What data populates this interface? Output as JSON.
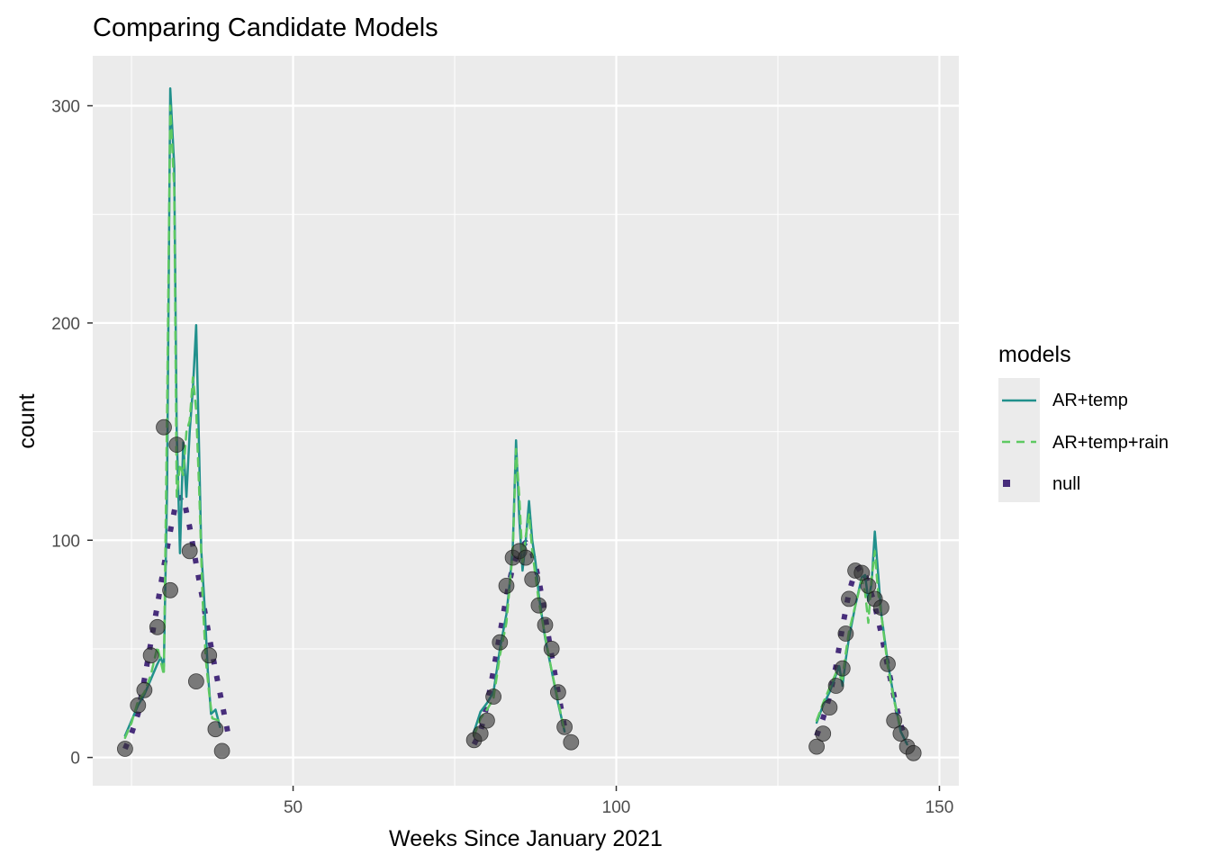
{
  "chart_data": {
    "type": "line",
    "title": "Comparing Candidate Models",
    "xlabel": "Weeks Since January 2021",
    "ylabel": "count",
    "xlim": [
      19,
      153
    ],
    "ylim": [
      -13,
      323
    ],
    "x_ticks": [
      50,
      100,
      150
    ],
    "y_ticks": [
      0,
      100,
      200,
      300
    ],
    "x_minor": [
      25,
      75,
      125
    ],
    "y_minor": [
      50,
      150,
      250
    ],
    "grid": true,
    "background": "#ebebeb",
    "legend": {
      "title": "models",
      "position": "right",
      "entries": [
        {
          "label": "AR+temp",
          "color": "#21908c",
          "style": "solid"
        },
        {
          "label": "AR+temp+rain",
          "color": "#5ec962",
          "style": "dashed"
        },
        {
          "label": "null",
          "color": "#472d7b",
          "style": "dotted"
        }
      ]
    },
    "observed": {
      "color": "#333333",
      "points": [
        [
          24,
          4
        ],
        [
          26,
          24
        ],
        [
          27,
          31
        ],
        [
          28,
          47
        ],
        [
          29,
          60
        ],
        [
          30,
          152
        ],
        [
          31,
          77
        ],
        [
          32,
          144
        ],
        [
          34,
          95
        ],
        [
          35,
          35
        ],
        [
          37,
          47
        ],
        [
          38,
          13
        ],
        [
          39,
          3
        ],
        [
          78,
          8
        ],
        [
          79,
          11
        ],
        [
          80,
          17
        ],
        [
          81,
          28
        ],
        [
          82,
          53
        ],
        [
          83,
          79
        ],
        [
          84,
          92
        ],
        [
          85,
          95
        ],
        [
          86,
          92
        ],
        [
          87,
          82
        ],
        [
          88,
          70
        ],
        [
          89,
          61
        ],
        [
          90,
          50
        ],
        [
          91,
          30
        ],
        [
          92,
          14
        ],
        [
          93,
          7
        ],
        [
          131,
          5
        ],
        [
          132,
          11
        ],
        [
          133,
          23
        ],
        [
          134,
          33
        ],
        [
          135,
          41
        ],
        [
          135.5,
          57
        ],
        [
          136,
          73
        ],
        [
          137,
          86
        ],
        [
          138,
          85
        ],
        [
          139,
          79
        ],
        [
          140,
          73
        ],
        [
          141,
          69
        ],
        [
          142,
          43
        ],
        [
          143,
          17
        ],
        [
          144,
          11
        ],
        [
          145,
          5
        ],
        [
          146,
          2
        ]
      ]
    },
    "series": [
      {
        "name": "AR+temp",
        "segments": [
          [
            [
              24,
              10
            ],
            [
              25,
              17
            ],
            [
              26,
              24
            ],
            [
              27,
              29
            ],
            [
              28,
              36
            ],
            [
              29,
              43
            ],
            [
              29.5,
              46
            ],
            [
              30,
              42
            ],
            [
              30.5,
              124
            ],
            [
              31,
              308
            ],
            [
              31.6,
              272
            ],
            [
              32,
              150
            ],
            [
              32.5,
              94
            ],
            [
              33,
              145
            ],
            [
              33.5,
              120
            ],
            [
              34,
              150
            ],
            [
              34.5,
              170
            ],
            [
              35,
              199
            ],
            [
              35.4,
              150
            ],
            [
              35.8,
              95
            ],
            [
              36.3,
              70
            ],
            [
              36.8,
              40
            ],
            [
              37.3,
              20
            ],
            [
              38,
              22
            ],
            [
              38.7,
              14
            ]
          ],
          [
            [
              78,
              12
            ],
            [
              79,
              21
            ],
            [
              80,
              25
            ],
            [
              81,
              30
            ],
            [
              82,
              50
            ],
            [
              83,
              66
            ],
            [
              83.5,
              80
            ],
            [
              84,
              97
            ],
            [
              84.5,
              146
            ],
            [
              85,
              110
            ],
            [
              85.5,
              86
            ],
            [
              86,
              100
            ],
            [
              86.5,
              118
            ],
            [
              87,
              100
            ],
            [
              87.5,
              90
            ],
            [
              88,
              75
            ],
            [
              89,
              55
            ],
            [
              90,
              40
            ],
            [
              91,
              25
            ],
            [
              92,
              12
            ]
          ],
          [
            [
              131,
              16
            ],
            [
              132,
              24
            ],
            [
              133,
              30
            ],
            [
              134,
              38
            ],
            [
              134.5,
              42
            ],
            [
              135,
              33
            ],
            [
              135.5,
              45
            ],
            [
              136,
              55
            ],
            [
              137,
              70
            ],
            [
              138,
              83
            ],
            [
              138.5,
              84
            ],
            [
              139,
              72
            ],
            [
              139.5,
              80
            ],
            [
              140,
              104
            ],
            [
              140.5,
              85
            ],
            [
              141,
              66
            ],
            [
              142,
              44
            ],
            [
              143,
              27
            ],
            [
              144,
              12
            ],
            [
              145,
              6
            ]
          ]
        ]
      },
      {
        "name": "AR+temp+rain",
        "segments": [
          [
            [
              24,
              9
            ],
            [
              25,
              16
            ],
            [
              26,
              26
            ],
            [
              27,
              30
            ],
            [
              28,
              38
            ],
            [
              29,
              51
            ],
            [
              30,
              38
            ],
            [
              30.5,
              160
            ],
            [
              31,
              300
            ],
            [
              31.6,
              262
            ],
            [
              32,
              120
            ],
            [
              32.5,
              135
            ],
            [
              33,
              130
            ],
            [
              33.5,
              150
            ],
            [
              34,
              155
            ],
            [
              34.5,
              175
            ],
            [
              35,
              160
            ],
            [
              35.5,
              120
            ],
            [
              36,
              73
            ],
            [
              36.5,
              45
            ],
            [
              37,
              30
            ],
            [
              37.5,
              18
            ],
            [
              38.5,
              17
            ]
          ],
          [
            [
              78,
              10
            ],
            [
              79,
              18
            ],
            [
              80,
              22
            ],
            [
              81,
              27
            ],
            [
              82,
              47
            ],
            [
              83,
              62
            ],
            [
              84,
              95
            ],
            [
              84.5,
              142
            ],
            [
              85,
              120
            ],
            [
              85.5,
              90
            ],
            [
              86,
              102
            ],
            [
              86.5,
              112
            ],
            [
              87,
              95
            ],
            [
              88,
              72
            ],
            [
              89,
              56
            ],
            [
              90,
              40
            ],
            [
              91,
              26
            ],
            [
              92,
              12
            ]
          ],
          [
            [
              131,
              17
            ],
            [
              132,
              25
            ],
            [
              133,
              32
            ],
            [
              134,
              39
            ],
            [
              135,
              36
            ],
            [
              135.5,
              48
            ],
            [
              136,
              58
            ],
            [
              137,
              70
            ],
            [
              138,
              82
            ],
            [
              138.5,
              76
            ],
            [
              139,
              62
            ],
            [
              139.5,
              82
            ],
            [
              140,
              95
            ],
            [
              140.5,
              76
            ],
            [
              141,
              66
            ],
            [
              142,
              42
            ],
            [
              143,
              26
            ],
            [
              144,
              13
            ]
          ]
        ]
      },
      {
        "name": "null",
        "segments": [
          [
            [
              24,
              4
            ],
            [
              25,
              11
            ],
            [
              26,
              20
            ],
            [
              27,
              36
            ],
            [
              28,
              53
            ],
            [
              29,
              70
            ],
            [
              30,
              88
            ],
            [
              31,
              104
            ],
            [
              32,
              119
            ],
            [
              33,
              120
            ],
            [
              34,
              106
            ],
            [
              35,
              89
            ],
            [
              36,
              73
            ],
            [
              37,
              56
            ],
            [
              38,
              40
            ],
            [
              39,
              25
            ],
            [
              40,
              10
            ]
          ],
          [
            [
              78,
              6
            ],
            [
              79,
              12
            ],
            [
              80,
              24
            ],
            [
              81,
              40
            ],
            [
              82,
              57
            ],
            [
              83,
              74
            ],
            [
              84,
              88
            ],
            [
              85,
              96
            ],
            [
              86,
              99
            ],
            [
              87,
              94
            ],
            [
              88,
              82
            ],
            [
              89,
              65
            ],
            [
              90,
              47
            ],
            [
              91,
              30
            ],
            [
              92,
              14
            ]
          ],
          [
            [
              131,
              10
            ],
            [
              132,
              18
            ],
            [
              133,
              28
            ],
            [
              134,
              42
            ],
            [
              135,
              60
            ],
            [
              136,
              76
            ],
            [
              137,
              86
            ],
            [
              138,
              88
            ],
            [
              139,
              80
            ],
            [
              140,
              70
            ],
            [
              141,
              57
            ],
            [
              142,
              42
            ],
            [
              143,
              28
            ],
            [
              144,
              15
            ],
            [
              145,
              7
            ]
          ]
        ]
      }
    ]
  }
}
